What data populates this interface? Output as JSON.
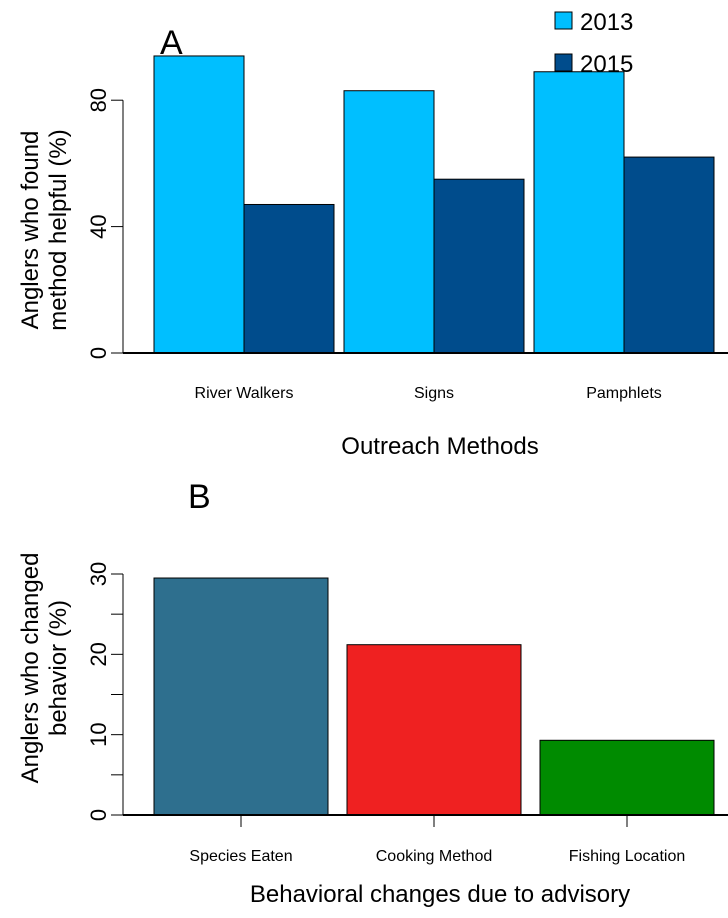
{
  "chart_data": [
    {
      "type": "bar",
      "panel_label": "A",
      "categories": [
        "River Walkers",
        "Signs",
        "Pamphlets"
      ],
      "series": [
        {
          "name": "2013",
          "color": "#00bfff",
          "values": [
            94,
            83,
            89
          ]
        },
        {
          "name": "2015",
          "color": "#004c8c",
          "values": [
            47,
            55,
            62
          ]
        }
      ],
      "xlabel": "Outreach Methods",
      "ylabel_lines": [
        "Anglers who found",
        "method helpful (%)"
      ],
      "yticks": [
        0,
        40,
        80
      ],
      "ylim": [
        0,
        100
      ],
      "legend": "top-right"
    },
    {
      "type": "bar",
      "panel_label": "B",
      "categories": [
        "Species Eaten",
        "Cooking Method",
        "Fishing Location"
      ],
      "values": [
        29.5,
        21.2,
        9.3
      ],
      "colors": [
        "#2e6f8e",
        "#ef2121",
        "#008b00"
      ],
      "xlabel": "Behavioral changes due to advisory",
      "ylabel_lines": [
        "Anglers who changed",
        "behavior (%)"
      ],
      "yticks": [
        0,
        10,
        20,
        30
      ],
      "yminor": [
        5,
        15,
        25
      ],
      "ylim": [
        0,
        30
      ]
    }
  ]
}
